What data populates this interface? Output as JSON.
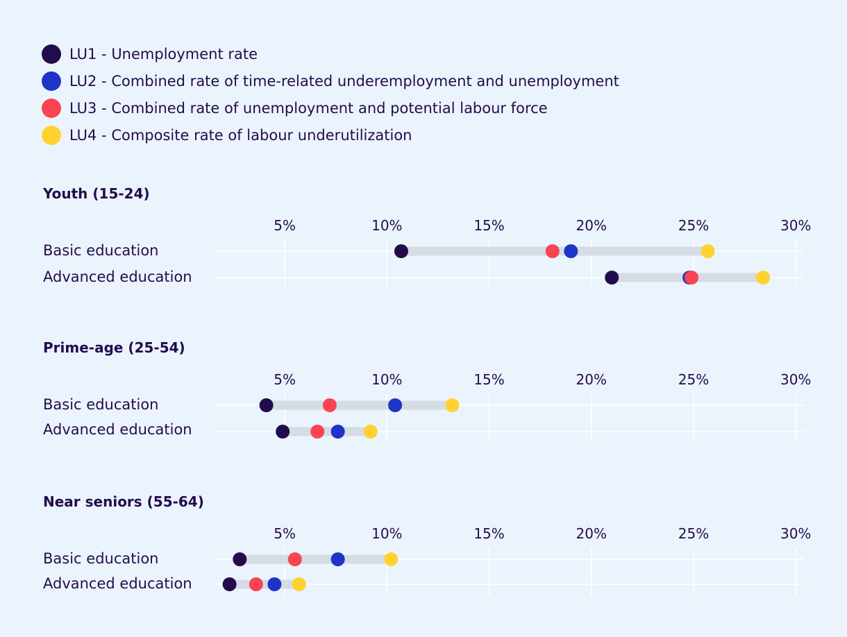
{
  "chart_data": {
    "type": "dot-range",
    "legend": [
      {
        "key": "lu1",
        "label": "LU1 - Unemployment rate",
        "color": "#230c4d"
      },
      {
        "key": "lu2",
        "label": "LU2 - Combined rate of time-related underemployment and unemployment",
        "color": "#1e34c8"
      },
      {
        "key": "lu3",
        "label": "LU3 - Combined rate of unemployment and potential labour force",
        "color": "#fa4451"
      },
      {
        "key": "lu4",
        "label": "LU4 - Composite rate of labour underutilization",
        "color": "#ffd232"
      }
    ],
    "x_ticks": [
      "5%",
      "10%",
      "15%",
      "20%",
      "25%",
      "30%"
    ],
    "x_tick_values": [
      5,
      10,
      15,
      20,
      25,
      30
    ],
    "xlim": [
      1.6,
      30.4
    ],
    "panels": [
      {
        "title": "Youth (15-24)",
        "rows": [
          {
            "label": "Basic education",
            "lu1": 10.7,
            "lu2": 19.0,
            "lu3": 18.1,
            "lu4": 25.7
          },
          {
            "label": "Advanced education",
            "lu1": 21.0,
            "lu2": 24.8,
            "lu3": 24.9,
            "lu4": 28.4
          }
        ]
      },
      {
        "title": "Prime-age (25-54)",
        "rows": [
          {
            "label": "Basic education",
            "lu1": 4.1,
            "lu2": 10.4,
            "lu3": 7.2,
            "lu4": 13.2
          },
          {
            "label": "Advanced education",
            "lu1": 4.9,
            "lu2": 7.6,
            "lu3": 6.6,
            "lu4": 9.2
          }
        ]
      },
      {
        "title": "Near seniors (55-64)",
        "rows": [
          {
            "label": "Basic education",
            "lu1": 2.8,
            "lu2": 7.6,
            "lu3": 5.5,
            "lu4": 10.2
          },
          {
            "label": "Advanced education",
            "lu1": 2.3,
            "lu2": 4.5,
            "lu3": 3.6,
            "lu4": 5.7
          }
        ]
      }
    ]
  }
}
